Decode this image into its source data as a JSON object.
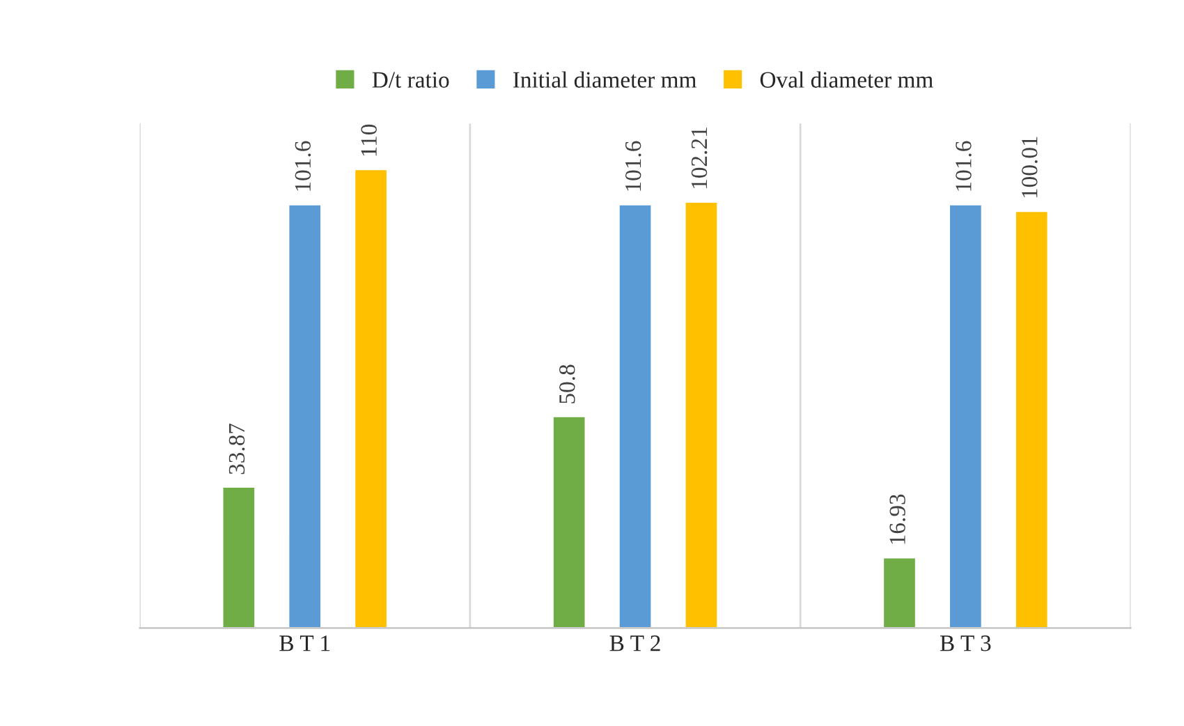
{
  "chart_data": {
    "type": "bar",
    "categories": [
      "B T 1",
      "B T 2",
      "B T 3"
    ],
    "series": [
      {
        "name": "D/t ratio",
        "color": "#70ad47",
        "values": [
          33.87,
          50.8,
          16.93
        ]
      },
      {
        "name": "Initial diameter mm",
        "color": "#5b9bd5",
        "values": [
          101.6,
          101.6,
          101.6
        ]
      },
      {
        "name": "Oval diameter mm",
        "color": "#ffc000",
        "values": [
          110,
          102.21,
          100.01
        ]
      }
    ],
    "data_labels": true,
    "legend": "top",
    "grid": false,
    "tick_labels": "x"
  }
}
